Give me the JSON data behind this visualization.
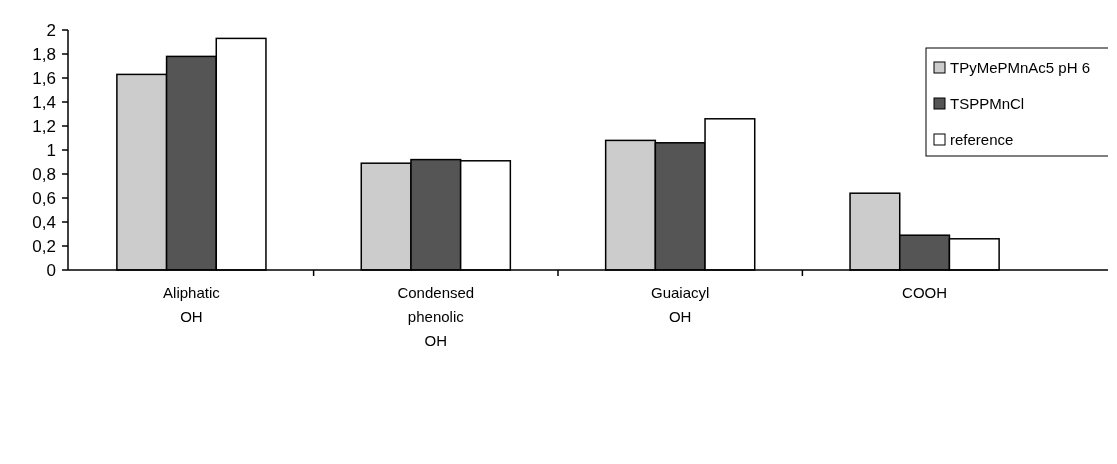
{
  "chart_data": {
    "type": "bar",
    "categories": [
      "Aliphatic\nOH",
      "Condensed\nphenolic\nOH",
      "Guaiacyl\nOH",
      "COOH"
    ],
    "series": [
      {
        "name": "TPyMePMnAc5 pH 6",
        "color": "#cccccc",
        "values": [
          1.63,
          0.89,
          1.08,
          0.64
        ]
      },
      {
        "name": "TSPPMnCl",
        "color": "#555555",
        "values": [
          1.78,
          0.92,
          1.06,
          0.29
        ]
      },
      {
        "name": "reference",
        "color": "#ffffff",
        "values": [
          1.93,
          0.91,
          1.26,
          0.26
        ]
      }
    ],
    "ylim": [
      0,
      2
    ],
    "yticks": [
      0,
      {
        "value": 0.2,
        "label": "0,2"
      },
      {
        "value": 0.4,
        "label": "0,4"
      },
      {
        "value": 0.6,
        "label": "0,6"
      },
      {
        "value": 0.8,
        "label": "0,8"
      },
      1,
      {
        "value": 1.2,
        "label": "1,2"
      },
      {
        "value": 1.4,
        "label": "1,4"
      },
      {
        "value": 1.6,
        "label": "1,6"
      },
      {
        "value": 1.8,
        "label": "1,8"
      },
      2
    ],
    "legend": "top right"
  }
}
